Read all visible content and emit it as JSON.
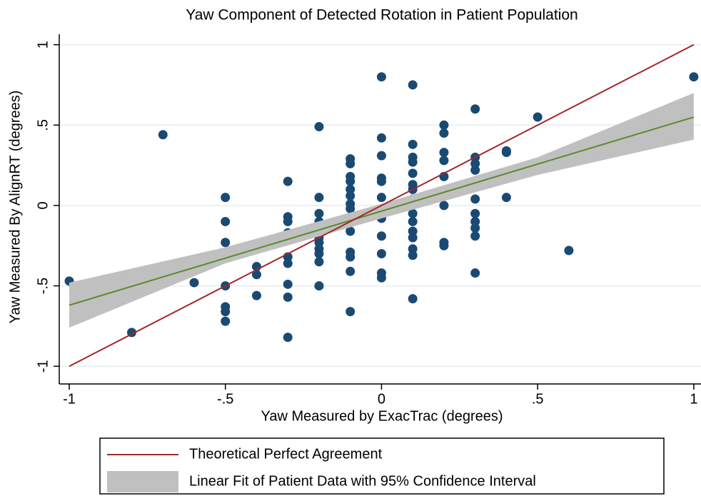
{
  "chart_data": {
    "type": "scatter",
    "title": "Yaw Component of Detected Rotation in Patient Population",
    "x_label": "Yaw Measured by ExacTrac (degrees)",
    "y_label": "Yaw Measured By AlignRT (degrees)",
    "xlim": [
      -1.032,
      1.03
    ],
    "ylim": [
      -1.11,
      1.065
    ],
    "xticks": [
      -1,
      {
        "value": -0.5,
        "label": "-.5"
      },
      0,
      {
        "value": 0.5,
        "label": ".5"
      },
      1
    ],
    "yticks": [
      -1,
      {
        "value": -0.5,
        "label": "-.5"
      },
      0,
      {
        "value": 0.5,
        "label": ".5"
      },
      1
    ],
    "grid": true,
    "series": [
      {
        "type": "band",
        "name": "Linear Fit of Patient Data with 95% Confidence Interval",
        "color": "#c0c0c0",
        "x": [
          -1,
          -0.5,
          0,
          0.5,
          1
        ],
        "lower": [
          -0.76,
          -0.36,
          -0.08,
          0.19,
          0.41
        ],
        "upper": [
          -0.48,
          -0.26,
          0.01,
          0.3,
          0.7
        ]
      },
      {
        "type": "line",
        "color": "#5a8a2a",
        "x": [
          -1,
          1
        ],
        "values": [
          -0.62,
          0.55
        ]
      },
      {
        "type": "line",
        "name": "Theoretical Perfect Agreement",
        "color": "#a0282d",
        "x": [
          -1,
          1
        ],
        "values": [
          -1,
          1
        ]
      },
      {
        "type": "scatter",
        "color": "#1a4a73",
        "x": [
          -1,
          -0.8,
          -0.7,
          -0.6,
          -0.5,
          -0.5,
          -0.5,
          -0.5,
          -0.5,
          -0.5,
          -0.5,
          -0.4,
          -0.4,
          -0.4,
          -0.3,
          -0.3,
          -0.3,
          -0.3,
          -0.3,
          -0.3,
          -0.3,
          -0.3,
          -0.3,
          -0.2,
          -0.2,
          -0.2,
          -0.2,
          -0.2,
          -0.2,
          -0.2,
          -0.2,
          -0.2,
          -0.2,
          -0.1,
          -0.1,
          -0.1,
          -0.1,
          -0.1,
          -0.1,
          -0.1,
          -0.1,
          -0.1,
          -0.1,
          -0.1,
          -0.1,
          -0.1,
          0,
          0,
          0,
          0,
          0,
          0,
          0,
          0,
          0,
          0,
          0,
          0,
          0.1,
          0.1,
          0.1,
          0.1,
          0.1,
          0.1,
          0.1,
          0.1,
          0.1,
          0.1,
          0.1,
          0.1,
          0.1,
          0.1,
          0.1,
          0.2,
          0.2,
          0.2,
          0.2,
          0.2,
          0.2,
          0.2,
          0.2,
          0.3,
          0.3,
          0.3,
          0.3,
          0.3,
          0.3,
          0.3,
          0.3,
          0.3,
          0.3,
          0.4,
          0.4,
          0.4,
          0.5,
          0.6,
          1
        ],
        "values": [
          -0.47,
          -0.79,
          0.44,
          -0.48,
          0.05,
          -0.1,
          -0.23,
          -0.5,
          -0.63,
          -0.66,
          -0.72,
          -0.38,
          -0.43,
          -0.56,
          0.15,
          -0.07,
          -0.1,
          -0.17,
          -0.32,
          -0.36,
          -0.49,
          -0.57,
          -0.82,
          0.49,
          0.05,
          -0.05,
          -0.1,
          -0.2,
          -0.23,
          -0.27,
          -0.3,
          -0.35,
          -0.5,
          0.29,
          0.26,
          0.18,
          0.15,
          0.1,
          0.06,
          0.01,
          -0.02,
          -0.16,
          -0.29,
          -0.32,
          -0.41,
          -0.66,
          0.8,
          0.42,
          0.31,
          0.17,
          0.15,
          0.05,
          -0.02,
          -0.08,
          -0.19,
          -0.3,
          -0.42,
          -0.45,
          0.75,
          0.38,
          0.3,
          0.27,
          0.2,
          0.13,
          0.1,
          0.04,
          -0.05,
          -0.1,
          -0.16,
          -0.2,
          -0.27,
          -0.31,
          -0.58,
          0.5,
          0.45,
          0.33,
          0.28,
          0.18,
          0,
          -0.23,
          -0.25,
          0.6,
          0.3,
          0.26,
          0.22,
          0.04,
          -0.05,
          -0.1,
          -0.14,
          -0.19,
          -0.42,
          0.34,
          0.33,
          0.05,
          0.55,
          -0.28,
          0.8
        ]
      }
    ]
  }
}
